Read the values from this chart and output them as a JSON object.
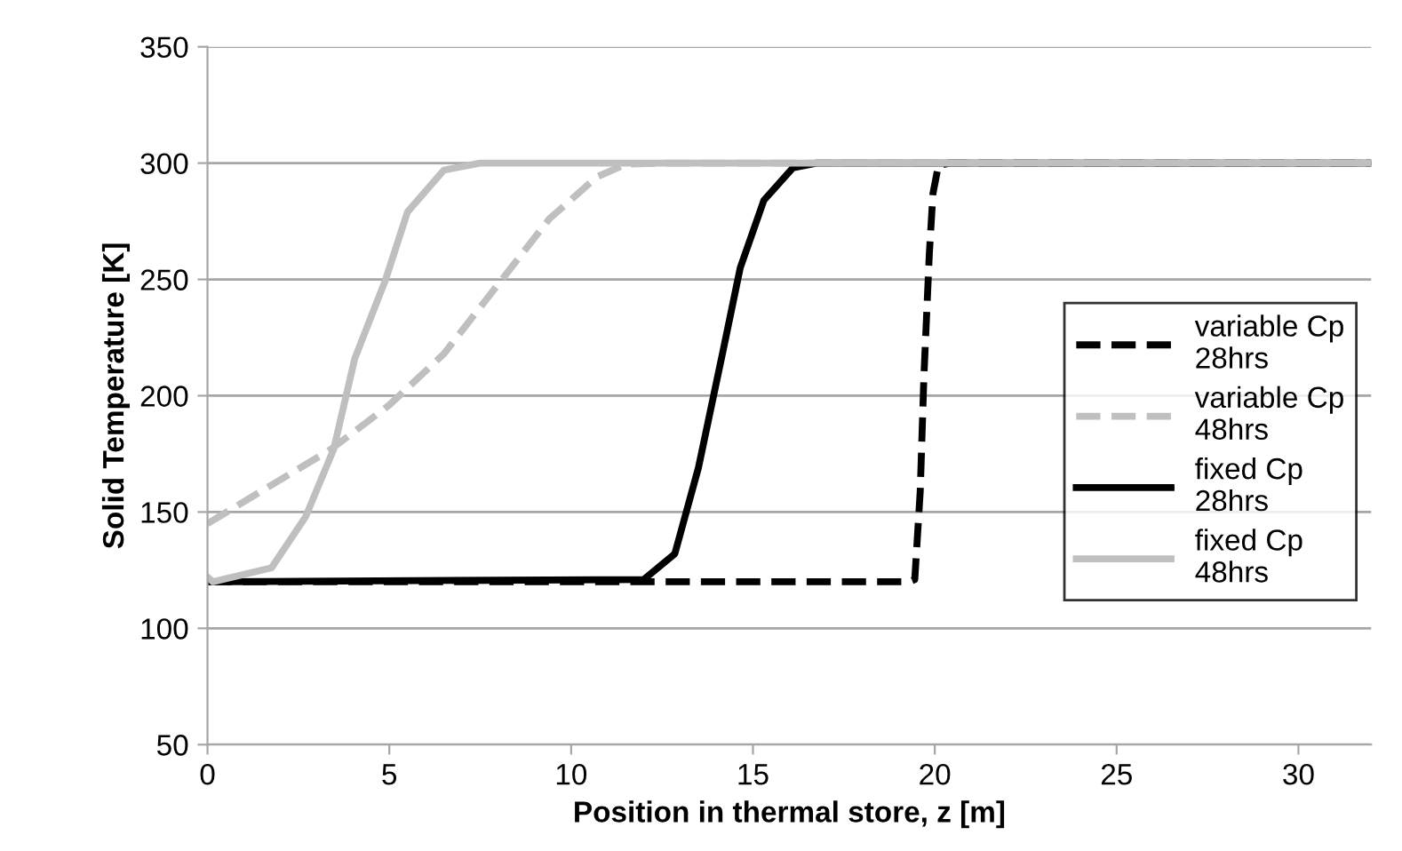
{
  "chart_data": {
    "type": "line",
    "xlabel": "Position in thermal store, z [m]",
    "ylabel": "Solid Temperature [K]",
    "xlim": [
      0,
      32
    ],
    "xticks": [
      0,
      5,
      10,
      15,
      20,
      25,
      30
    ],
    "ylim": [
      50,
      350
    ],
    "yticks": [
      50,
      100,
      150,
      200,
      250,
      300,
      350
    ],
    "grid": "y",
    "legend": "right",
    "marker": "none",
    "series": [
      {
        "name": "variable Cp\n28hrs",
        "color": "#000000",
        "line_style": "dashed",
        "x": [
          0,
          19.3,
          19.45,
          19.6,
          19.7,
          19.85,
          19.95,
          20.1,
          20.4,
          32
        ],
        "values": [
          120,
          120,
          121,
          159,
          208,
          261,
          287,
          299,
          300,
          300
        ]
      },
      {
        "name": "variable Cp\n48hrs",
        "color": "#bfbfbf",
        "line_style": "dashed",
        "x": [
          0,
          1.27,
          3.4,
          5.0,
          6.5,
          8.1,
          9.4,
          10.7,
          11.5,
          12.5,
          32
        ],
        "values": [
          145,
          157,
          177,
          196,
          218,
          250,
          276,
          294,
          299.5,
          300,
          300
        ]
      },
      {
        "name": "fixed Cp\n28hrs",
        "color": "#000000",
        "line_style": "solid",
        "x": [
          0,
          12.0,
          12.85,
          13.5,
          14.2,
          14.65,
          15.3,
          16.1,
          16.75,
          32
        ],
        "values": [
          120,
          121,
          132,
          169,
          221,
          255,
          284,
          298,
          300,
          300
        ]
      },
      {
        "name": "fixed Cp\n48hrs",
        "color": "#bfbfbf",
        "line_style": "solid",
        "x": [
          0,
          0.15,
          1.76,
          2.7,
          3.47,
          4.05,
          4.9,
          5.5,
          6.5,
          7.5,
          32
        ],
        "values": [
          122,
          120,
          126,
          148,
          177,
          216,
          250,
          279,
          297,
          300,
          300
        ]
      }
    ]
  }
}
